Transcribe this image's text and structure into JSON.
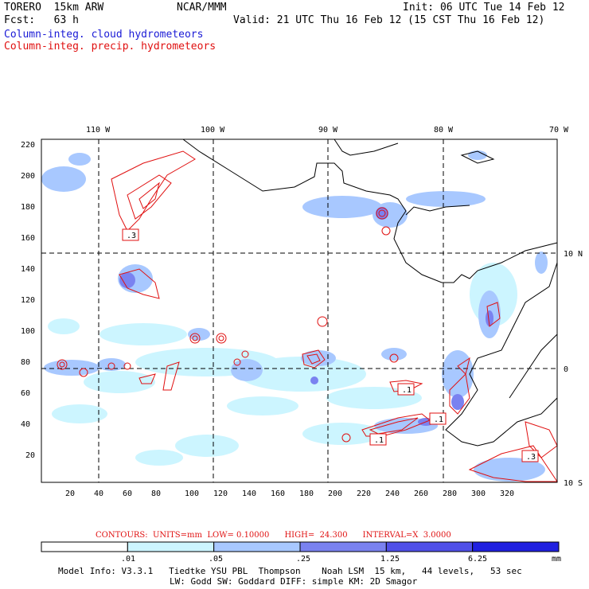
{
  "header": {
    "model": "TORERO  15km ARW",
    "org": "NCAR/MMM",
    "init": "Init: 06 UTC Tue 14 Feb 12",
    "fcst": "Fcst:   63 h",
    "valid": "Valid: 21 UTC Thu 16 Feb 12 (15 CST Thu 16 Feb 12)",
    "field1": "Column-integ. cloud hydrometeors",
    "field2": "Column-integ. precip. hydrometeors"
  },
  "axes": {
    "top_lon": [
      "110 W",
      "100 W",
      "90 W",
      "80 W",
      "70 W"
    ],
    "right_lat": [
      "10 N",
      "0",
      "10 S"
    ],
    "left_y": [
      "220",
      "200",
      "180",
      "160",
      "140",
      "120",
      "100",
      "80",
      "60",
      "40",
      "20"
    ],
    "bottom_x": [
      "20",
      "40",
      "60",
      "80",
      "100",
      "120",
      "140",
      "160",
      "180",
      "200",
      "220",
      "240",
      "260",
      "280",
      "300",
      "320"
    ]
  },
  "contour_labels": [
    ".3",
    ".1",
    ".1",
    ".1",
    ".3"
  ],
  "contours": {
    "text": "CONTOURS:  UNITS=mm  LOW= 0.10000      HIGH=  24.300      INTERVAL=X  3.0000"
  },
  "colorbar": {
    "labels": [
      ".01",
      ".05",
      ".25",
      "1.25",
      "6.25"
    ],
    "units": "mm",
    "colors": [
      "#ffffff",
      "#ccf5ff",
      "#a8c8ff",
      "#7a82f0",
      "#5050e8",
      "#2020e0"
    ]
  },
  "footer": {
    "line1": "Model Info: V3.3.1   Tiedtke YSU PBL  Thompson    Noah LSM  15 km,   44 levels,   53 sec",
    "line2": "LW: Godd SW: Goddard DIFF: simple KM: 2D Smagor"
  }
}
